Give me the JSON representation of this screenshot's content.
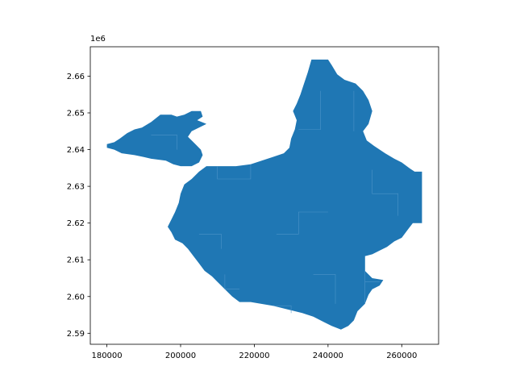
{
  "figure": {
    "offset_text": "1e6"
  },
  "map_data": {
    "type": "choropleth-outline",
    "fill_color": "#1f77b4",
    "edge_color": "#4d94c8",
    "xlim": [
      175500,
      270000
    ],
    "ylim": [
      2587000,
      2668000
    ],
    "x_ticks": [
      {
        "value": 180000,
        "label": "180000"
      },
      {
        "value": 200000,
        "label": "200000"
      },
      {
        "value": 220000,
        "label": "220000"
      },
      {
        "value": 240000,
        "label": "240000"
      },
      {
        "value": 260000,
        "label": "260000"
      }
    ],
    "y_ticks": [
      {
        "value": 2590000,
        "label": "2.59"
      },
      {
        "value": 2600000,
        "label": "2.60"
      },
      {
        "value": 2610000,
        "label": "2.61"
      },
      {
        "value": 2620000,
        "label": "2.62"
      },
      {
        "value": 2630000,
        "label": "2.63"
      },
      {
        "value": 2640000,
        "label": "2.64"
      },
      {
        "value": 2650000,
        "label": "2.65"
      },
      {
        "value": 2660000,
        "label": "2.66"
      }
    ],
    "region": [
      [
        235500,
        2664500
      ],
      [
        240000,
        2664500
      ],
      [
        241000,
        2663000
      ],
      [
        242500,
        2660500
      ],
      [
        244500,
        2659000
      ],
      [
        247500,
        2658000
      ],
      [
        249500,
        2656000
      ],
      [
        251000,
        2653500
      ],
      [
        252000,
        2650500
      ],
      [
        251000,
        2647000
      ],
      [
        249500,
        2645000
      ],
      [
        250500,
        2642500
      ],
      [
        252500,
        2641000
      ],
      [
        255500,
        2639000
      ],
      [
        258000,
        2637500
      ],
      [
        260000,
        2636500
      ],
      [
        262000,
        2635000
      ],
      [
        263500,
        2634000
      ],
      [
        265500,
        2634000
      ],
      [
        265500,
        2627000
      ],
      [
        265500,
        2622000
      ],
      [
        265500,
        2620000
      ],
      [
        263000,
        2620000
      ],
      [
        261500,
        2618000
      ],
      [
        260000,
        2616000
      ],
      [
        258000,
        2615000
      ],
      [
        256000,
        2613500
      ],
      [
        254000,
        2612500
      ],
      [
        252000,
        2611500
      ],
      [
        250000,
        2611000
      ],
      [
        250000,
        2607000
      ],
      [
        252000,
        2605000
      ],
      [
        255000,
        2604500
      ],
      [
        254000,
        2603000
      ],
      [
        252000,
        2602000
      ],
      [
        251000,
        2600500
      ],
      [
        250000,
        2598000
      ],
      [
        248000,
        2596000
      ],
      [
        247000,
        2593500
      ],
      [
        245500,
        2592000
      ],
      [
        243500,
        2591000
      ],
      [
        241000,
        2592000
      ],
      [
        239000,
        2593000
      ],
      [
        236000,
        2594500
      ],
      [
        233000,
        2595500
      ],
      [
        229000,
        2596500
      ],
      [
        225000,
        2597500
      ],
      [
        219000,
        2598500
      ],
      [
        216000,
        2598500
      ],
      [
        214000,
        2600000
      ],
      [
        212000,
        2602000
      ],
      [
        210000,
        2604000
      ],
      [
        208500,
        2605500
      ],
      [
        206500,
        2607000
      ],
      [
        205000,
        2609000
      ],
      [
        203500,
        2611000
      ],
      [
        202000,
        2613000
      ],
      [
        200500,
        2614500
      ],
      [
        198500,
        2615500
      ],
      [
        197500,
        2617500
      ],
      [
        196500,
        2619000
      ],
      [
        197500,
        2621000
      ],
      [
        198500,
        2623000
      ],
      [
        199500,
        2625500
      ],
      [
        200000,
        2628000
      ],
      [
        201000,
        2630500
      ],
      [
        203000,
        2632000
      ],
      [
        205000,
        2634000
      ],
      [
        207000,
        2635500
      ],
      [
        210000,
        2635500
      ],
      [
        215000,
        2635500
      ],
      [
        219000,
        2636000
      ],
      [
        222000,
        2637000
      ],
      [
        225000,
        2638000
      ],
      [
        228000,
        2639000
      ],
      [
        229500,
        2640500
      ],
      [
        230000,
        2643000
      ],
      [
        231000,
        2645500
      ],
      [
        231500,
        2648000
      ],
      [
        230500,
        2650500
      ],
      [
        231500,
        2652500
      ],
      [
        232500,
        2655000
      ],
      [
        233500,
        2658000
      ],
      [
        234500,
        2661000
      ]
    ],
    "exclave": [
      [
        180000,
        2641500
      ],
      [
        182000,
        2642000
      ],
      [
        183500,
        2643000
      ],
      [
        185500,
        2644500
      ],
      [
        187500,
        2645500
      ],
      [
        189500,
        2646000
      ],
      [
        192000,
        2647500
      ],
      [
        194500,
        2649500
      ],
      [
        197500,
        2649500
      ],
      [
        199000,
        2649000
      ],
      [
        201000,
        2649500
      ],
      [
        203000,
        2650500
      ],
      [
        205500,
        2650500
      ],
      [
        206000,
        2649000
      ],
      [
        204500,
        2648000
      ],
      [
        207000,
        2647000
      ],
      [
        205000,
        2646000
      ],
      [
        203000,
        2645000
      ],
      [
        202000,
        2643500
      ],
      [
        204000,
        2641500
      ],
      [
        205500,
        2640000
      ],
      [
        206000,
        2638500
      ],
      [
        205000,
        2636500
      ],
      [
        203000,
        2635500
      ],
      [
        200000,
        2635500
      ],
      [
        198000,
        2636000
      ],
      [
        196000,
        2637000
      ],
      [
        192000,
        2637500
      ],
      [
        190000,
        2638000
      ],
      [
        187500,
        2638500
      ],
      [
        184000,
        2639000
      ],
      [
        182000,
        2640000
      ],
      [
        180000,
        2640500
      ]
    ],
    "internal_borders": [
      [
        [
          232000,
          2645500
        ],
        [
          238000,
          2645500
        ],
        [
          238000,
          2656000
        ]
      ],
      [
        [
          247000,
          2656000
        ],
        [
          247000,
          2645000
        ]
      ],
      [
        [
          210000,
          2635500
        ],
        [
          210000,
          2632000
        ],
        [
          219000,
          2632000
        ],
        [
          219000,
          2636000
        ]
      ],
      [
        [
          205000,
          2617000
        ],
        [
          211000,
          2617000
        ],
        [
          211000,
          2613000
        ]
      ],
      [
        [
          212000,
          2606000
        ],
        [
          212000,
          2602000
        ],
        [
          216000,
          2602000
        ]
      ],
      [
        [
          250000,
          2611000
        ],
        [
          250000,
          2598000
        ]
      ],
      [
        [
          250000,
          2604000
        ],
        [
          254000,
          2604000
        ]
      ],
      [
        [
          225000,
          2597500
        ],
        [
          230000,
          2597500
        ],
        [
          230000,
          2595500
        ]
      ],
      [
        [
          252000,
          2634500
        ],
        [
          252000,
          2628000
        ],
        [
          259000,
          2628000
        ],
        [
          259000,
          2622000
        ]
      ],
      [
        [
          226000,
          2617000
        ],
        [
          232000,
          2617000
        ],
        [
          232000,
          2623000
        ],
        [
          240000,
          2623000
        ]
      ],
      [
        [
          236000,
          2606000
        ],
        [
          242000,
          2606000
        ],
        [
          242000,
          2598000
        ]
      ],
      [
        [
          192000,
          2644000
        ],
        [
          199000,
          2644000
        ],
        [
          199000,
          2640000
        ]
      ]
    ]
  }
}
